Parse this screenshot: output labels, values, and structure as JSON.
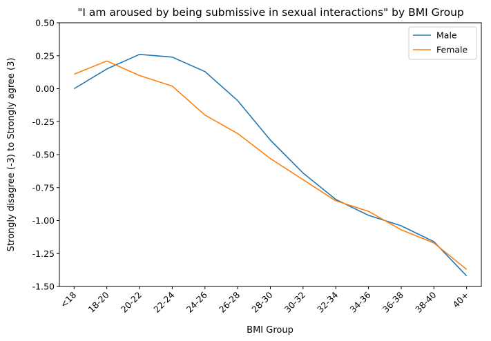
{
  "chart_data": {
    "type": "line",
    "title": "\"I am aroused by being submissive in sexual interactions\" by BMI Group",
    "xlabel": "BMI Group",
    "ylabel": "Strongly disagree (-3) to Strongly agree (3)",
    "categories": [
      "<18",
      "18-20",
      "20-22",
      "22-24",
      "24-26",
      "26-28",
      "28-30",
      "30-32",
      "32-34",
      "34-36",
      "36-38",
      "38-40",
      "40+"
    ],
    "ylim": [
      -1.5,
      0.5
    ],
    "yticks": [
      "-1.50",
      "-1.25",
      "-1.00",
      "-0.75",
      "-0.50",
      "-0.25",
      "0.00",
      "0.25",
      "0.50"
    ],
    "grid": false,
    "legend_position": "top-right",
    "series": [
      {
        "name": "Male",
        "color": "#1f77b4",
        "values": [
          0.0,
          0.15,
          0.26,
          0.24,
          0.13,
          -0.09,
          -0.39,
          -0.64,
          -0.84,
          -0.96,
          -1.04,
          -1.16,
          -1.42
        ]
      },
      {
        "name": "Female",
        "color": "#ff7f0e",
        "values": [
          0.11,
          0.21,
          0.1,
          0.02,
          -0.2,
          -0.34,
          -0.53,
          -0.69,
          -0.85,
          -0.93,
          -1.07,
          -1.17,
          -1.37
        ]
      }
    ]
  }
}
